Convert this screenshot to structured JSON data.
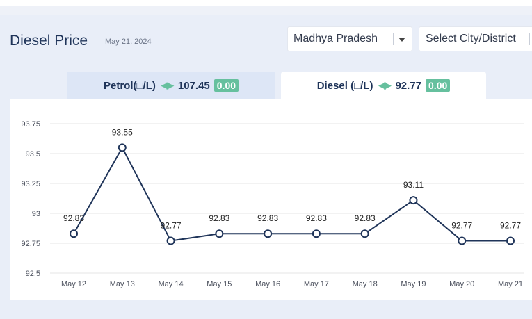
{
  "header": {
    "title": "Diesel Price",
    "date": "May 21, 2024"
  },
  "filters": {
    "state": "Madhya Pradesh",
    "city_placeholder": "Select City/District"
  },
  "tabs": [
    {
      "label": "Petrol(□/L)",
      "price": "107.45",
      "change": "0.00",
      "active": false
    },
    {
      "label": "Diesel (□/L)",
      "price": "92.77",
      "change": "0.00",
      "active": true
    }
  ],
  "icons": {
    "change_indicator": "left-right-arrows-icon",
    "dropdown": "chevron-down-icon"
  },
  "colors": {
    "line": "#1f3459",
    "badge": "#66c09e",
    "title": "#1f3459"
  },
  "chart_data": {
    "type": "line",
    "categories": [
      "May 12",
      "May 13",
      "May 14",
      "May 15",
      "May 16",
      "May 17",
      "May 18",
      "May 19",
      "May 20",
      "May 21"
    ],
    "values": [
      92.83,
      93.55,
      92.77,
      92.83,
      92.83,
      92.83,
      92.83,
      93.11,
      92.77,
      92.77
    ],
    "value_labels": [
      "92.83",
      "93.55",
      "92.77",
      "92.83",
      "92.83",
      "92.83",
      "92.83",
      "93.11",
      "92.77",
      "92.77"
    ],
    "y_ticks": [
      "92.5",
      "92.75",
      "93",
      "93.25",
      "93.5",
      "93.75"
    ],
    "ylim": [
      92.5,
      93.75
    ],
    "grid": true,
    "legend": "none"
  }
}
